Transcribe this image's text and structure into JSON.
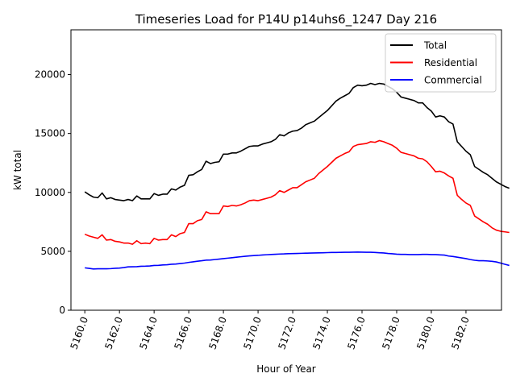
{
  "chart_data": {
    "type": "line",
    "title": "Timeseries Load for P14U p14uhs6_1247  Day 216",
    "xlabel": "Hour of Year",
    "ylabel": "kW total",
    "xlim": [
      5159.2,
      5184.05
    ],
    "ylim": [
      0,
      23800
    ],
    "xticks": [
      5160,
      5162,
      5164,
      5166,
      5168,
      5170,
      5172,
      5174,
      5176,
      5178,
      5180,
      5182
    ],
    "xtick_labels": [
      "5160.0",
      "5162.0",
      "5164.0",
      "5166.0",
      "5168.0",
      "5170.0",
      "5172.0",
      "5174.0",
      "5176.0",
      "5178.0",
      "5180.0",
      "5182.0"
    ],
    "yticks": [
      0,
      5000,
      10000,
      15000,
      20000
    ],
    "ytick_labels": [
      "0",
      "5000",
      "10000",
      "15000",
      "20000"
    ],
    "legend_position": "top-right",
    "grid": false,
    "x_start": 5160,
    "x_step": 0.25,
    "series": [
      {
        "name": "Total",
        "color": "#000000",
        "values": [
          10050,
          9800,
          9600,
          9550,
          9950,
          9450,
          9550,
          9400,
          9350,
          9300,
          9400,
          9300,
          9700,
          9450,
          9450,
          9450,
          9900,
          9750,
          9850,
          9850,
          10300,
          10200,
          10450,
          10600,
          11450,
          11500,
          11750,
          11950,
          12650,
          12450,
          12550,
          12600,
          13250,
          13250,
          13350,
          13350,
          13500,
          13700,
          13900,
          13950,
          13950,
          14100,
          14200,
          14300,
          14500,
          14900,
          14800,
          15050,
          15200,
          15250,
          15450,
          15750,
          15900,
          16050,
          16350,
          16650,
          16950,
          17350,
          17750,
          18000,
          18200,
          18400,
          18900,
          19100,
          19050,
          19100,
          19250,
          19150,
          19250,
          19200,
          19000,
          18800,
          18500,
          18100,
          18000,
          17900,
          17800,
          17600,
          17600,
          17200,
          16900,
          16400,
          16500,
          16400,
          16000,
          15800,
          14300,
          13900,
          13500,
          13200,
          12200,
          11950,
          11700,
          11500,
          11200,
          10900,
          10700,
          10500,
          10350
        ]
      },
      {
        "name": "Residential",
        "color": "#ff0000",
        "values": [
          6450,
          6300,
          6200,
          6100,
          6400,
          5950,
          6000,
          5850,
          5800,
          5700,
          5700,
          5600,
          5900,
          5650,
          5700,
          5650,
          6100,
          5950,
          6000,
          6000,
          6400,
          6250,
          6500,
          6600,
          7350,
          7350,
          7600,
          7700,
          8350,
          8200,
          8200,
          8200,
          8850,
          8800,
          8900,
          8850,
          8950,
          9100,
          9300,
          9350,
          9300,
          9400,
          9500,
          9600,
          9800,
          10150,
          10000,
          10200,
          10400,
          10400,
          10650,
          10900,
          11050,
          11200,
          11600,
          11900,
          12200,
          12550,
          12900,
          13100,
          13300,
          13450,
          13900,
          14050,
          14100,
          14150,
          14300,
          14250,
          14400,
          14300,
          14150,
          14000,
          13750,
          13400,
          13300,
          13200,
          13100,
          12900,
          12850,
          12600,
          12200,
          11750,
          11800,
          11650,
          11400,
          11200,
          9750,
          9400,
          9100,
          8900,
          8000,
          7750,
          7500,
          7300,
          7000,
          6800,
          6700,
          6650,
          6600
        ]
      },
      {
        "name": "Commercial",
        "color": "#0000ff",
        "values": [
          3600,
          3550,
          3500,
          3520,
          3520,
          3520,
          3530,
          3560,
          3580,
          3620,
          3680,
          3690,
          3700,
          3730,
          3740,
          3760,
          3800,
          3810,
          3840,
          3860,
          3900,
          3920,
          3960,
          4000,
          4060,
          4110,
          4160,
          4200,
          4250,
          4260,
          4300,
          4340,
          4380,
          4420,
          4460,
          4500,
          4540,
          4580,
          4610,
          4640,
          4660,
          4690,
          4710,
          4730,
          4750,
          4770,
          4780,
          4800,
          4810,
          4820,
          4830,
          4840,
          4850,
          4860,
          4870,
          4880,
          4890,
          4900,
          4900,
          4910,
          4920,
          4920,
          4930,
          4940,
          4930,
          4920,
          4920,
          4900,
          4880,
          4860,
          4820,
          4790,
          4760,
          4740,
          4740,
          4720,
          4720,
          4720,
          4740,
          4740,
          4720,
          4720,
          4700,
          4680,
          4600,
          4560,
          4500,
          4440,
          4380,
          4300,
          4240,
          4200,
          4200,
          4180,
          4150,
          4100,
          4000,
          3900,
          3800
        ]
      }
    ]
  }
}
